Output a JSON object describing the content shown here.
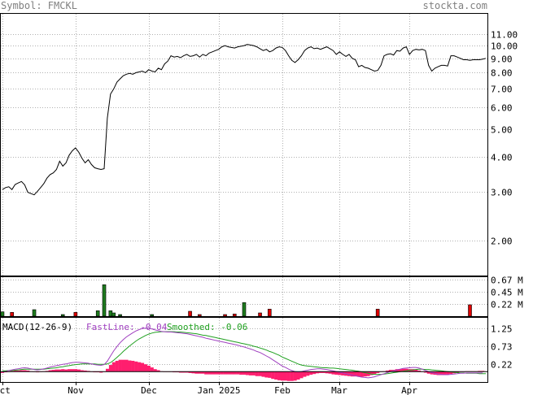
{
  "header": {
    "symbol_text": "Symbol: FMCKL",
    "brand": "stockta.com"
  },
  "colors": {
    "price_line": "#000000",
    "volume_up": "#1e7b1e",
    "volume_down": "#e00000",
    "macd_hist": "#ff1e6e",
    "fast_line": "#a040c0",
    "smoothed_line": "#20a020",
    "zero_line": "#000000",
    "grid": "#b0b0b0"
  },
  "macd_legend": {
    "title": "MACD(12-26-9)",
    "fast_label": "FastLine: -0.04",
    "smoothed_label": "Smoothed: -0.06"
  },
  "chart_data": [
    {
      "type": "line",
      "name": "price",
      "y_scale": "log",
      "ylim": [
        1.5,
        13.0
      ],
      "y_ticks": [
        "11.00",
        "10.00",
        "9.00",
        "8.00",
        "7.00",
        "6.00",
        "5.00",
        "4.00",
        "3.00",
        "2.00"
      ],
      "y_tick_values": [
        11,
        10,
        9,
        8,
        7,
        6,
        5,
        4,
        3,
        2
      ],
      "x_labels": [
        "Oct",
        "Nov",
        "Dec",
        "Jan 2025",
        "Feb",
        "Mar",
        "Apr"
      ],
      "x_label_positions": [
        0,
        23,
        46,
        68,
        88,
        106,
        128
      ],
      "n_days": 153,
      "values": [
        3.05,
        3.1,
        3.12,
        3.05,
        3.18,
        3.22,
        3.26,
        3.17,
        2.98,
        2.95,
        2.92,
        3.0,
        3.1,
        3.2,
        3.35,
        3.45,
        3.5,
        3.6,
        3.85,
        3.7,
        3.8,
        4.05,
        4.2,
        4.3,
        4.15,
        3.95,
        3.8,
        3.9,
        3.75,
        3.65,
        3.62,
        3.6,
        3.62,
        5.5,
        6.7,
        7.0,
        7.4,
        7.6,
        7.8,
        7.9,
        7.95,
        7.9,
        8.0,
        8.05,
        8.1,
        8.0,
        8.2,
        8.1,
        8.05,
        8.3,
        8.2,
        8.6,
        8.8,
        9.2,
        9.1,
        9.15,
        9.05,
        9.2,
        9.3,
        9.15,
        9.2,
        9.3,
        9.1,
        9.3,
        9.2,
        9.4,
        9.5,
        9.6,
        9.7,
        9.9,
        10.0,
        9.9,
        9.85,
        9.8,
        9.9,
        9.95,
        10.0,
        10.1,
        10.05,
        10.0,
        9.9,
        9.75,
        9.6,
        9.7,
        9.5,
        9.6,
        9.8,
        9.9,
        9.85,
        9.6,
        9.2,
        8.85,
        8.7,
        8.9,
        9.2,
        9.6,
        9.8,
        9.9,
        9.75,
        9.8,
        9.7,
        9.8,
        9.9,
        9.75,
        9.6,
        9.3,
        9.5,
        9.3,
        9.15,
        9.3,
        9.0,
        8.9,
        8.4,
        8.5,
        8.35,
        8.3,
        8.2,
        8.1,
        8.15,
        8.5,
        9.2,
        9.3,
        9.35,
        9.25,
        9.6,
        9.55,
        9.8,
        9.9,
        9.3,
        9.6,
        9.7,
        9.65,
        9.7,
        9.6,
        8.5,
        8.1,
        8.3,
        8.4,
        8.5,
        8.5,
        8.45,
        9.2,
        9.2,
        9.1,
        9.0,
        8.9,
        8.9,
        8.85,
        8.9,
        8.9,
        8.9,
        8.95,
        9.0
      ]
    },
    {
      "type": "bar",
      "name": "volume",
      "unit": "M",
      "y_ticks": [
        "0.67 M",
        "0.45 M",
        "0.22 M"
      ],
      "y_tick_values": [
        0.67,
        0.45,
        0.22
      ],
      "ylim": [
        0,
        0.72
      ],
      "bars": [
        {
          "day": 0,
          "value": 0.08,
          "dir": "up"
        },
        {
          "day": 3,
          "value": 0.07,
          "dir": "down"
        },
        {
          "day": 10,
          "value": 0.12,
          "dir": "up"
        },
        {
          "day": 19,
          "value": 0.03,
          "dir": "up"
        },
        {
          "day": 23,
          "value": 0.07,
          "dir": "down"
        },
        {
          "day": 30,
          "value": 0.1,
          "dir": "up"
        },
        {
          "day": 32,
          "value": 0.58,
          "dir": "up"
        },
        {
          "day": 34,
          "value": 0.1,
          "dir": "up"
        },
        {
          "day": 35,
          "value": 0.06,
          "dir": "up"
        },
        {
          "day": 37,
          "value": 0.03,
          "dir": "up"
        },
        {
          "day": 47,
          "value": 0.03,
          "dir": "up"
        },
        {
          "day": 59,
          "value": 0.09,
          "dir": "down"
        },
        {
          "day": 62,
          "value": 0.03,
          "dir": "down"
        },
        {
          "day": 70,
          "value": 0.03,
          "dir": "down"
        },
        {
          "day": 73,
          "value": 0.04,
          "dir": "down"
        },
        {
          "day": 76,
          "value": 0.25,
          "dir": "up"
        },
        {
          "day": 81,
          "value": 0.06,
          "dir": "down"
        },
        {
          "day": 84,
          "value": 0.13,
          "dir": "down"
        },
        {
          "day": 118,
          "value": 0.13,
          "dir": "down"
        },
        {
          "day": 147,
          "value": 0.21,
          "dir": "down"
        }
      ]
    },
    {
      "type": "line",
      "name": "macd",
      "ylim": [
        -0.3,
        1.55
      ],
      "y_ticks": [
        "1.25",
        "0.73",
        "0.22"
      ],
      "y_tick_values": [
        1.25,
        0.73,
        0.22
      ],
      "fast_line": [
        -0.02,
        0.0,
        0.03,
        0.05,
        0.07,
        0.08,
        0.1,
        0.11,
        0.1,
        0.08,
        0.06,
        0.05,
        0.06,
        0.08,
        0.1,
        0.13,
        0.15,
        0.17,
        0.19,
        0.21,
        0.22,
        0.24,
        0.26,
        0.27,
        0.27,
        0.26,
        0.25,
        0.24,
        0.22,
        0.2,
        0.19,
        0.18,
        0.2,
        0.3,
        0.45,
        0.6,
        0.72,
        0.83,
        0.92,
        1.0,
        1.06,
        1.12,
        1.17,
        1.21,
        1.24,
        1.25,
        1.25,
        1.23,
        1.2,
        1.18,
        1.16,
        1.15,
        1.14,
        1.14,
        1.13,
        1.12,
        1.11,
        1.1,
        1.09,
        1.07,
        1.05,
        1.03,
        1.01,
        0.99,
        0.96,
        0.94,
        0.92,
        0.9,
        0.88,
        0.86,
        0.84,
        0.82,
        0.8,
        0.78,
        0.76,
        0.73,
        0.71,
        0.68,
        0.65,
        0.62,
        0.58,
        0.55,
        0.5,
        0.45,
        0.4,
        0.34,
        0.28,
        0.22,
        0.16,
        0.12,
        0.07,
        0.03,
        0.0,
        -0.01,
        0.0,
        0.02,
        0.04,
        0.06,
        0.07,
        0.08,
        0.08,
        0.07,
        0.06,
        0.04,
        0.02,
        0.0,
        -0.02,
        -0.04,
        -0.06,
        -0.08,
        -0.1,
        -0.12,
        -0.14,
        -0.16,
        -0.17,
        -0.18,
        -0.17,
        -0.15,
        -0.12,
        -0.09,
        -0.06,
        -0.03,
        0.0,
        0.02,
        0.05,
        0.07,
        0.09,
        0.1,
        0.11,
        0.12,
        0.12,
        0.1,
        0.07,
        0.03,
        0.0,
        -0.03,
        -0.05,
        -0.07,
        -0.08,
        -0.09,
        -0.09,
        -0.08,
        -0.07,
        -0.06,
        -0.05,
        -0.05,
        -0.04,
        -0.04,
        -0.04,
        -0.04,
        -0.04,
        -0.04
      ],
      "smoothed_line": [
        0.02,
        0.02,
        0.03,
        0.03,
        0.04,
        0.05,
        0.06,
        0.07,
        0.07,
        0.07,
        0.07,
        0.07,
        0.07,
        0.07,
        0.08,
        0.09,
        0.1,
        0.11,
        0.13,
        0.14,
        0.16,
        0.17,
        0.19,
        0.2,
        0.21,
        0.22,
        0.22,
        0.22,
        0.22,
        0.22,
        0.21,
        0.21,
        0.21,
        0.22,
        0.26,
        0.33,
        0.41,
        0.49,
        0.58,
        0.66,
        0.74,
        0.81,
        0.88,
        0.94,
        0.99,
        1.04,
        1.08,
        1.11,
        1.13,
        1.14,
        1.15,
        1.15,
        1.15,
        1.15,
        1.15,
        1.14,
        1.14,
        1.13,
        1.12,
        1.11,
        1.1,
        1.09,
        1.07,
        1.05,
        1.04,
        1.02,
        1.0,
        0.98,
        0.96,
        0.94,
        0.92,
        0.9,
        0.88,
        0.86,
        0.84,
        0.82,
        0.8,
        0.78,
        0.76,
        0.73,
        0.71,
        0.68,
        0.65,
        0.62,
        0.58,
        0.55,
        0.51,
        0.47,
        0.42,
        0.38,
        0.34,
        0.3,
        0.26,
        0.22,
        0.19,
        0.17,
        0.16,
        0.15,
        0.14,
        0.13,
        0.12,
        0.11,
        0.11,
        0.1,
        0.1,
        0.09,
        0.08,
        0.07,
        0.06,
        0.05,
        0.04,
        0.02,
        0.01,
        -0.01,
        -0.03,
        -0.05,
        -0.07,
        -0.08,
        -0.08,
        -0.08,
        -0.07,
        -0.06,
        -0.05,
        -0.03,
        -0.02,
        0.0,
        0.01,
        0.02,
        0.04,
        0.05,
        0.06,
        0.07,
        0.07,
        0.06,
        0.06,
        0.05,
        0.04,
        0.03,
        0.02,
        0.01,
        0.0,
        -0.01,
        -0.02,
        -0.03,
        -0.04,
        -0.04,
        -0.05,
        -0.05,
        -0.05,
        -0.05,
        -0.06,
        -0.06,
        -0.06
      ]
    }
  ]
}
